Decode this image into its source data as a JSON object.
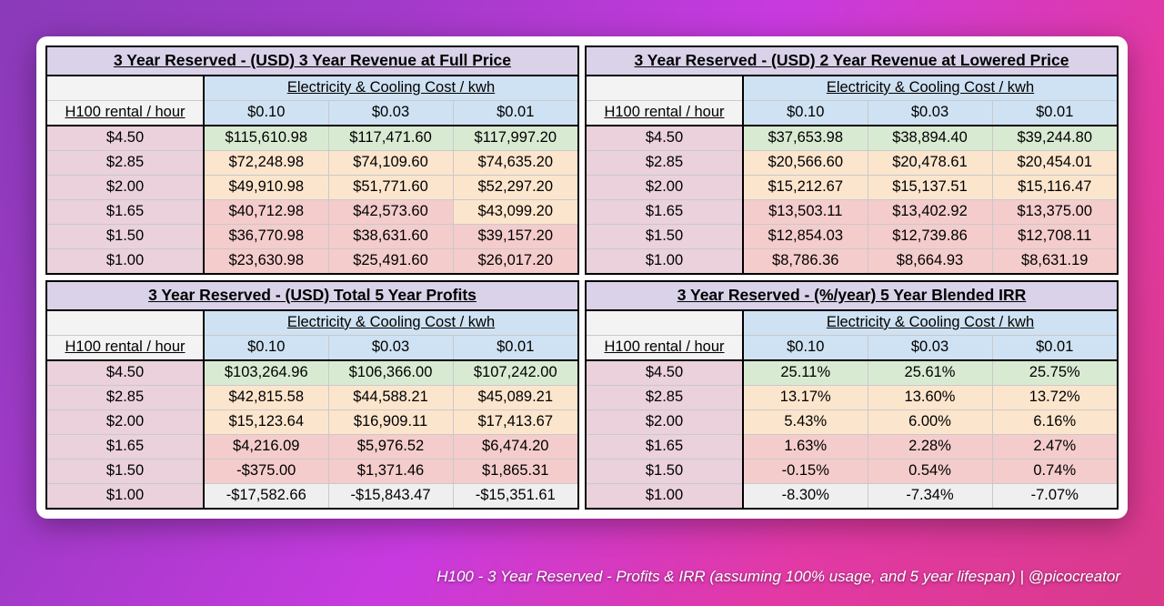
{
  "caption": "H100 - 3 Year Reserved - Profits & IRR (assuming 100% usage, and 5 year lifespan) | @picocreator",
  "labels": {
    "kwh_header": "Electricity & Cooling Cost / kwh",
    "rental_header": "H100 rental / hour",
    "kwh_prices": [
      "$0.10",
      "$0.03",
      "$0.01"
    ],
    "rentals": [
      "$4.50",
      "$2.85",
      "$2.00",
      "$1.65",
      "$1.50",
      "$1.00"
    ]
  },
  "colors": {
    "title_bg": "#d9d2e9",
    "kwh_bg": "#cfe2f3",
    "blank_bg": "#f3f3f3",
    "rental_bg": "#ead1dc",
    "green": "#d9ead3",
    "yellow": "#fce5cd",
    "pink": "#f4cccc",
    "gray": "#efefef",
    "border": "#000000",
    "grid": "#c9c9c9"
  },
  "tables": [
    {
      "title": "3 Year Reserved - (USD) 3 Year Revenue at Full Price",
      "rows": [
        {
          "cells": [
            "$115,610.98",
            "$117,471.60",
            "$117,997.20"
          ],
          "shades": [
            "g",
            "g",
            "g"
          ]
        },
        {
          "cells": [
            "$72,248.98",
            "$74,109.60",
            "$74,635.20"
          ],
          "shades": [
            "y",
            "y",
            "y"
          ]
        },
        {
          "cells": [
            "$49,910.98",
            "$51,771.60",
            "$52,297.20"
          ],
          "shades": [
            "y",
            "y",
            "y"
          ]
        },
        {
          "cells": [
            "$40,712.98",
            "$42,573.60",
            "$43,099.20"
          ],
          "shades": [
            "p",
            "p",
            "y"
          ]
        },
        {
          "cells": [
            "$36,770.98",
            "$38,631.60",
            "$39,157.20"
          ],
          "shades": [
            "p",
            "p",
            "p"
          ]
        },
        {
          "cells": [
            "$23,630.98",
            "$25,491.60",
            "$26,017.20"
          ],
          "shades": [
            "p",
            "p",
            "p"
          ]
        }
      ]
    },
    {
      "title": "3 Year Reserved - (USD) 2 Year Revenue at Lowered Price",
      "rows": [
        {
          "cells": [
            "$37,653.98",
            "$38,894.40",
            "$39,244.80"
          ],
          "shades": [
            "g",
            "g",
            "g"
          ]
        },
        {
          "cells": [
            "$20,566.60",
            "$20,478.61",
            "$20,454.01"
          ],
          "shades": [
            "y",
            "y",
            "y"
          ]
        },
        {
          "cells": [
            "$15,212.67",
            "$15,137.51",
            "$15,116.47"
          ],
          "shades": [
            "y",
            "y",
            "y"
          ]
        },
        {
          "cells": [
            "$13,503.11",
            "$13,402.92",
            "$13,375.00"
          ],
          "shades": [
            "p",
            "p",
            "p"
          ]
        },
        {
          "cells": [
            "$12,854.03",
            "$12,739.86",
            "$12,708.11"
          ],
          "shades": [
            "p",
            "p",
            "p"
          ]
        },
        {
          "cells": [
            "$8,786.36",
            "$8,664.93",
            "$8,631.19"
          ],
          "shades": [
            "p",
            "p",
            "p"
          ]
        }
      ]
    },
    {
      "title": "3 Year Reserved - (USD) Total 5 Year Profits",
      "rows": [
        {
          "cells": [
            "$103,264.96",
            "$106,366.00",
            "$107,242.00"
          ],
          "shades": [
            "g",
            "g",
            "g"
          ]
        },
        {
          "cells": [
            "$42,815.58",
            "$44,588.21",
            "$45,089.21"
          ],
          "shades": [
            "y",
            "y",
            "y"
          ]
        },
        {
          "cells": [
            "$15,123.64",
            "$16,909.11",
            "$17,413.67"
          ],
          "shades": [
            "y",
            "y",
            "y"
          ]
        },
        {
          "cells": [
            "$4,216.09",
            "$5,976.52",
            "$6,474.20"
          ],
          "shades": [
            "p",
            "p",
            "p"
          ]
        },
        {
          "cells": [
            "-$375.00",
            "$1,371.46",
            "$1,865.31"
          ],
          "shades": [
            "p",
            "p",
            "p"
          ]
        },
        {
          "cells": [
            "-$17,582.66",
            "-$15,843.47",
            "-$15,351.61"
          ],
          "shades": [
            "gr",
            "gr",
            "gr"
          ]
        }
      ]
    },
    {
      "title": "3 Year Reserved - (%/year) 5 Year Blended IRR",
      "rows": [
        {
          "cells": [
            "25.11%",
            "25.61%",
            "25.75%"
          ],
          "shades": [
            "g",
            "g",
            "g"
          ]
        },
        {
          "cells": [
            "13.17%",
            "13.60%",
            "13.72%"
          ],
          "shades": [
            "y",
            "y",
            "y"
          ]
        },
        {
          "cells": [
            "5.43%",
            "6.00%",
            "6.16%"
          ],
          "shades": [
            "y",
            "y",
            "y"
          ]
        },
        {
          "cells": [
            "1.63%",
            "2.28%",
            "2.47%"
          ],
          "shades": [
            "p",
            "p",
            "p"
          ]
        },
        {
          "cells": [
            "-0.15%",
            "0.54%",
            "0.74%"
          ],
          "shades": [
            "p",
            "p",
            "p"
          ]
        },
        {
          "cells": [
            "-8.30%",
            "-7.34%",
            "-7.07%"
          ],
          "shades": [
            "gr",
            "gr",
            "gr"
          ]
        }
      ]
    }
  ]
}
